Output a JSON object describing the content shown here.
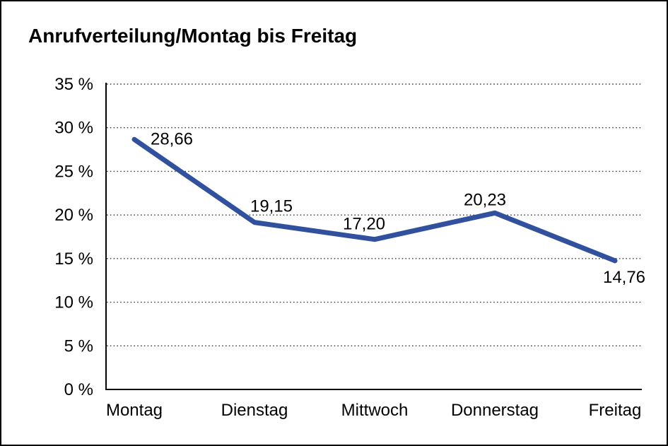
{
  "chart_data": {
    "type": "line",
    "title": "Anrufverteilung/Montag bis Freitag",
    "categories": [
      "Montag",
      "Dienstag",
      "Mittwoch",
      "Donnerstag",
      "Freitag"
    ],
    "values": [
      28.66,
      19.15,
      17.2,
      20.23,
      14.76
    ],
    "point_labels": [
      "28,66",
      "19,15",
      "17,20",
      "20,23",
      "14,76"
    ],
    "ytick_labels": [
      "0 %",
      "5 %",
      "10 %",
      "15 %",
      "20 %",
      "25 %",
      "30 %",
      "35 %"
    ],
    "ylim": [
      0,
      35
    ],
    "ystep": 5,
    "xlabel": "",
    "ylabel": "",
    "grid": "horizontal-dotted",
    "legend": "none",
    "markers": "none",
    "colors": {
      "line": "#31519E",
      "text": "#000000",
      "grid": "#3a3a3a",
      "axis": "#000000",
      "background": "#ffffff",
      "border": "#000000"
    }
  }
}
